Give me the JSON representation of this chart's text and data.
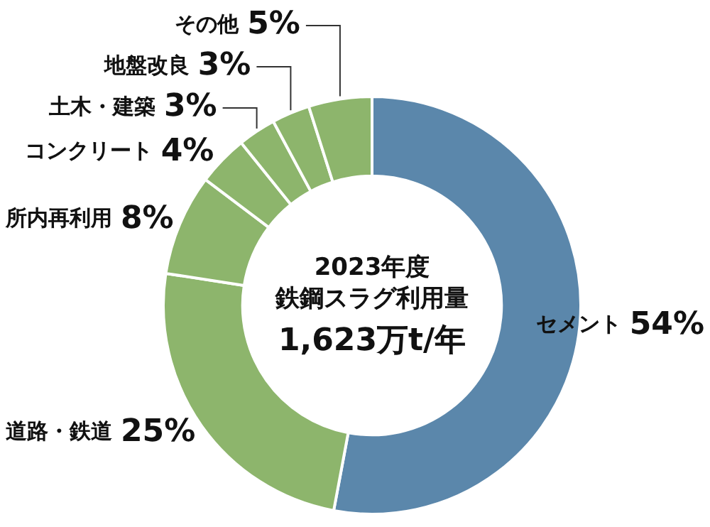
{
  "chart_data": {
    "type": "donut",
    "title": "2023年度",
    "subtitle": "鉄鋼スラグ利用量",
    "annotations": [
      "1,623万t/年"
    ],
    "categories": [
      "セメント",
      "道路・鉄道",
      "所内再利用",
      "コンクリート",
      "土木・建築",
      "地盤改良",
      "その他"
    ],
    "values": [
      54,
      25,
      8,
      4,
      3,
      3,
      5
    ],
    "value_labels": [
      "54%",
      "25%",
      "8%",
      "4%",
      "3%",
      "3%",
      "5%"
    ],
    "colors": [
      "#5b87ab",
      "#8db56c",
      "#8db56c",
      "#8db56c",
      "#8db56c",
      "#8db56c",
      "#8db56c"
    ],
    "legend": false
  }
}
